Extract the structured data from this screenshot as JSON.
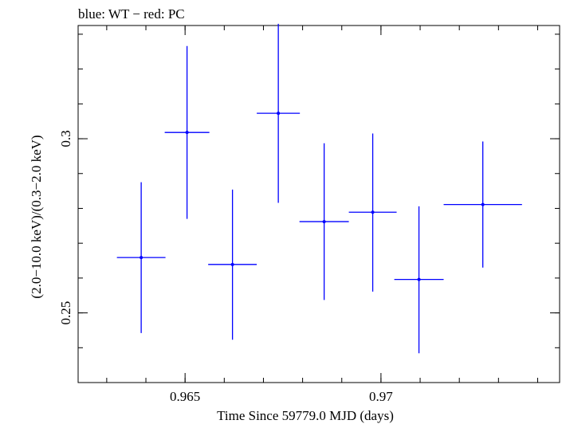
{
  "header": {
    "title": "blue: WT − red: PC"
  },
  "chart_data": {
    "type": "scatter",
    "title": "blue: WT − red: PC",
    "xlabel": "Time Since 59779.0 MJD (days)",
    "ylabel": "(2.0−10.0 keV)/(0.3−2.0 keV)",
    "xlim": [
      0.96227,
      0.97456
    ],
    "ylim": [
      0.23,
      0.3325
    ],
    "x_major_ticks": [
      0.965,
      0.97
    ],
    "x_tick_labels": [
      "0.965",
      "0.97"
    ],
    "y_major_ticks": [
      0.25,
      0.3
    ],
    "y_tick_labels": [
      "0.25",
      "0.3"
    ],
    "grid": false,
    "series": [
      {
        "color": "#0000ff",
        "points": [
          {
            "x": 0.96388,
            "y": 0.2659,
            "xerr": 0.00062,
            "yerr_lo": 0.0217,
            "yerr_hi": 0.0216
          },
          {
            "x": 0.96505,
            "y": 0.3018,
            "xerr": 0.00057,
            "yerr_lo": 0.0248,
            "yerr_hi": 0.0248
          },
          {
            "x": 0.96621,
            "y": 0.2639,
            "xerr": 0.00062,
            "yerr_lo": 0.0216,
            "yerr_hi": 0.0215
          },
          {
            "x": 0.96738,
            "y": 0.3073,
            "xerr": 0.00055,
            "yerr_lo": 0.0257,
            "yerr_hi": 0.0257
          },
          {
            "x": 0.96855,
            "y": 0.2762,
            "xerr": 0.00063,
            "yerr_lo": 0.0225,
            "yerr_hi": 0.0225
          },
          {
            "x": 0.96979,
            "y": 0.2789,
            "xerr": 0.00061,
            "yerr_lo": 0.0228,
            "yerr_hi": 0.0226
          },
          {
            "x": 0.97097,
            "y": 0.2596,
            "xerr": 0.00063,
            "yerr_lo": 0.0212,
            "yerr_hi": 0.021
          },
          {
            "x": 0.9726,
            "y": 0.2811,
            "xerr": 0.001,
            "yerr_lo": 0.0181,
            "yerr_hi": 0.0181
          }
        ]
      }
    ]
  }
}
